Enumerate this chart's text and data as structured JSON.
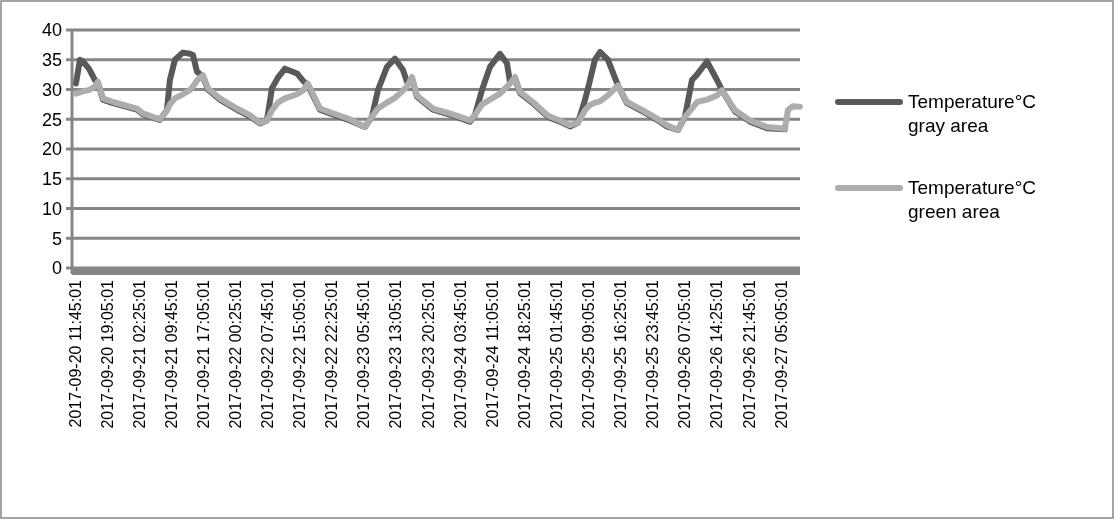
{
  "chart_data": {
    "type": "line",
    "x": [
      "2017-09-20T11:59",
      "2017-09-20T12:54",
      "2017-09-20T13:35",
      "2017-09-20T14:57",
      "2017-09-20T16:19",
      "2017-09-20T17:00",
      "2017-09-20T18:09",
      "2017-09-20T20:26",
      "2017-09-21T01:55",
      "2017-09-21T03:17",
      "2017-09-21T07:10",
      "2017-09-21T08:46",
      "2017-09-21T09:27",
      "2017-09-21T10:36",
      "2017-09-21T12:26",
      "2017-09-21T14:02",
      "2017-09-21T14:43",
      "2017-09-21T15:38",
      "2017-09-21T17:00",
      "2017-09-21T18:08",
      "2017-09-21T20:53",
      "2017-09-22T00:46",
      "2017-09-22T03:44",
      "2017-09-22T06:01",
      "2017-09-22T07:37",
      "2017-09-22T08:46",
      "2017-09-22T10:08",
      "2017-09-22T11:44",
      "2017-09-22T14:29",
      "2017-09-22T15:51",
      "2017-09-22T16:59",
      "2017-09-22T19:44",
      "2017-09-22T22:42",
      "2017-09-23T02:35",
      "2017-09-23T06:01",
      "2017-09-23T07:37",
      "2017-09-23T08:59",
      "2017-09-23T11:03",
      "2017-09-23T12:52",
      "2017-09-23T14:42",
      "2017-09-23T15:37",
      "2017-09-23T16:45",
      "2017-09-23T17:54",
      "2017-09-23T21:33",
      "2017-09-24T01:26",
      "2017-09-24T06:00",
      "2017-09-24T07:09",
      "2017-09-24T08:45",
      "2017-09-24T10:35",
      "2017-09-24T12:51",
      "2017-09-24T14:28",
      "2017-09-24T15:09",
      "2017-09-24T16:18",
      "2017-09-24T17:26",
      "2017-09-24T20:24",
      "2017-09-24T23:50",
      "2017-09-25T02:34",
      "2017-09-25T04:51",
      "2017-09-25T06:41",
      "2017-09-25T08:17",
      "2017-09-25T09:25",
      "2017-09-25T10:34",
      "2017-09-25T11:43",
      "2017-09-25T13:32",
      "2017-09-25T15:49",
      "2017-09-25T17:53",
      "2017-09-25T21:32",
      "2017-09-26T00:44",
      "2017-09-26T03:01",
      "2017-09-26T05:32",
      "2017-09-26T07:08",
      "2017-09-26T08:44",
      "2017-09-26T09:53",
      "2017-09-26T12:10",
      "2017-09-26T14:27",
      "2017-09-26T15:35",
      "2017-09-26T18:34",
      "2017-09-26T21:59",
      "2017-09-27T01:52",
      "2017-09-27T05:58",
      "2017-09-27T06:39",
      "2017-09-27T07:47",
      "2017-09-27T09:23"
    ],
    "series": [
      {
        "name": "Temperature°C gray area",
        "color": "#595959",
        "values": [
          31.0,
          35.0,
          34.7,
          33.5,
          31.6,
          31.1,
          28.3,
          27.7,
          26.6,
          25.8,
          24.9,
          26.5,
          31.6,
          35.0,
          36.2,
          36.0,
          35.8,
          33.0,
          32.2,
          30.0,
          28.3,
          26.6,
          25.5,
          24.3,
          24.8,
          30.2,
          32.0,
          33.5,
          32.7,
          31.5,
          30.7,
          26.6,
          25.8,
          24.8,
          23.7,
          25.4,
          29.9,
          33.8,
          35.2,
          33.3,
          31.3,
          31.8,
          28.8,
          26.6,
          25.8,
          24.6,
          25.7,
          29.9,
          33.8,
          36.0,
          34.4,
          31.3,
          31.9,
          29.4,
          27.7,
          25.4,
          24.6,
          23.8,
          24.4,
          28.2,
          31.5,
          35.0,
          36.3,
          35.0,
          30.7,
          27.7,
          26.3,
          24.9,
          23.8,
          23.2,
          25.4,
          31.6,
          32.5,
          34.7,
          31.6,
          29.9,
          26.3,
          24.6,
          23.5,
          23.3,
          null,
          null,
          null
        ]
      },
      {
        "name": "Temperature°C green area",
        "color": "#adadad",
        "values": [
          29.3,
          29.5,
          29.7,
          29.9,
          30.5,
          31.3,
          28.5,
          27.9,
          26.8,
          26.0,
          25.0,
          26.5,
          27.5,
          28.5,
          29.2,
          29.9,
          30.5,
          31.5,
          32.4,
          30.2,
          28.5,
          26.8,
          25.7,
          24.4,
          24.8,
          26.5,
          27.8,
          28.5,
          29.2,
          29.8,
          31.0,
          26.8,
          26.0,
          25.0,
          23.7,
          25.4,
          26.8,
          27.8,
          28.6,
          29.8,
          30.5,
          32.1,
          29.0,
          26.8,
          26.0,
          24.8,
          25.7,
          27.5,
          28.3,
          29.3,
          30.5,
          31.0,
          32.1,
          29.6,
          27.9,
          25.6,
          24.8,
          24.0,
          24.4,
          26.5,
          27.4,
          27.8,
          28.0,
          29.0,
          30.7,
          27.9,
          26.5,
          25.1,
          24.0,
          23.2,
          25.4,
          26.8,
          27.9,
          28.3,
          29.0,
          29.9,
          26.5,
          24.8,
          23.7,
          23.4,
          26.5,
          27.2,
          27.1
        ]
      }
    ],
    "xlim": [
      "2017-09-20T11:05",
      "2017-09-27T09:25"
    ],
    "xticks": [
      {
        "value": "2017-09-20T11:45",
        "label": "2017-09-20 11:45:01"
      },
      {
        "value": "2017-09-20T19:05",
        "label": "2017-09-20 19:05:01"
      },
      {
        "value": "2017-09-21T02:25",
        "label": "2017-09-21 02:25:01"
      },
      {
        "value": "2017-09-21T09:45",
        "label": "2017-09-21 09:45:01"
      },
      {
        "value": "2017-09-21T17:05",
        "label": "2017-09-21 17:05:01"
      },
      {
        "value": "2017-09-22T00:25",
        "label": "2017-09-22 00:25:01"
      },
      {
        "value": "2017-09-22T07:45",
        "label": "2017-09-22 07:45:01"
      },
      {
        "value": "2017-09-22T15:05",
        "label": "2017-09-22 15:05:01"
      },
      {
        "value": "2017-09-22T22:25",
        "label": "2017-09-22 22:25:01"
      },
      {
        "value": "2017-09-23T05:45",
        "label": "2017-09-23 05:45:01"
      },
      {
        "value": "2017-09-23T13:05",
        "label": "2017-09-23 13:05:01"
      },
      {
        "value": "2017-09-23T20:25",
        "label": "2017-09-23 20:25:01"
      },
      {
        "value": "2017-09-24T03:45",
        "label": "2017-09-24 03:45:01"
      },
      {
        "value": "2017-09-24T11:05",
        "label": "2017-09-24 11:05:01"
      },
      {
        "value": "2017-09-24T18:25",
        "label": "2017-09-24 18:25:01"
      },
      {
        "value": "2017-09-25T01:45",
        "label": "2017-09-25 01:45:01"
      },
      {
        "value": "2017-09-25T09:05",
        "label": "2017-09-25 09:05:01"
      },
      {
        "value": "2017-09-25T16:25",
        "label": "2017-09-25 16:25:01"
      },
      {
        "value": "2017-09-25T23:45",
        "label": "2017-09-25 23:45:01"
      },
      {
        "value": "2017-09-26T07:05",
        "label": "2017-09-26 07:05:01"
      },
      {
        "value": "2017-09-26T14:25",
        "label": "2017-09-26 14:25:01"
      },
      {
        "value": "2017-09-26T21:45",
        "label": "2017-09-26 21:45:01"
      },
      {
        "value": "2017-09-27T05:05",
        "label": "2017-09-27 05:05:01"
      }
    ],
    "ylim": [
      0,
      40
    ],
    "yticks": [
      0,
      5,
      10,
      15,
      20,
      25,
      30,
      35,
      40
    ],
    "grid": "y",
    "legend": "right",
    "marker": "none",
    "line_style": "solid"
  }
}
